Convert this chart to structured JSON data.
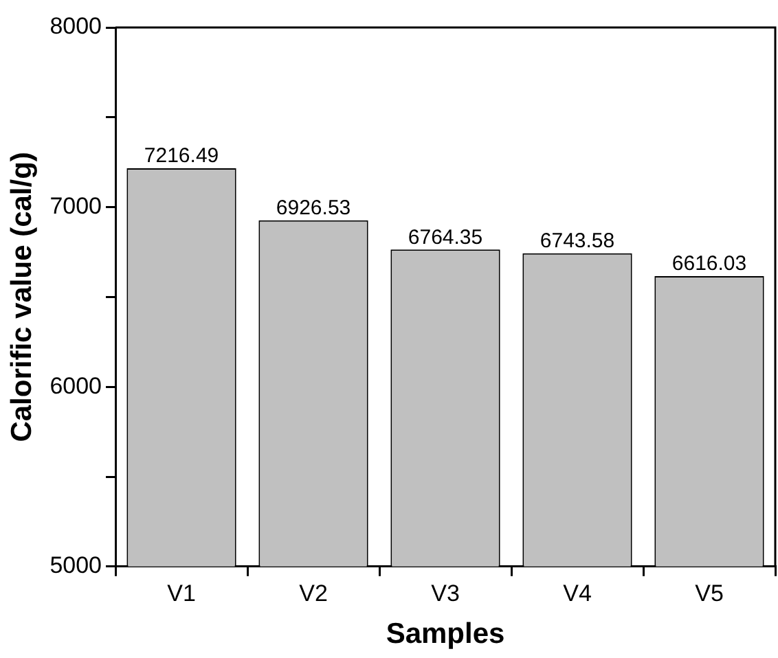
{
  "chart_data": {
    "type": "bar",
    "xlabel": "Samples",
    "ylabel": "Calorific value (cal/g)",
    "categories": [
      "V1",
      "V2",
      "V3",
      "V4",
      "V5"
    ],
    "values": [
      7216.49,
      6926.53,
      6764.35,
      6743.58,
      6616.03
    ],
    "color": "#c0c0c0",
    "ylim": [
      5000,
      8000
    ],
    "yticks": [
      5000,
      {
        "value": 5500,
        "label": null
      },
      6000,
      {
        "value": 6500,
        "label": null
      },
      7000,
      {
        "value": 7500,
        "label": null
      },
      8000
    ],
    "data_labels": true,
    "grid": false,
    "legend": false
  }
}
